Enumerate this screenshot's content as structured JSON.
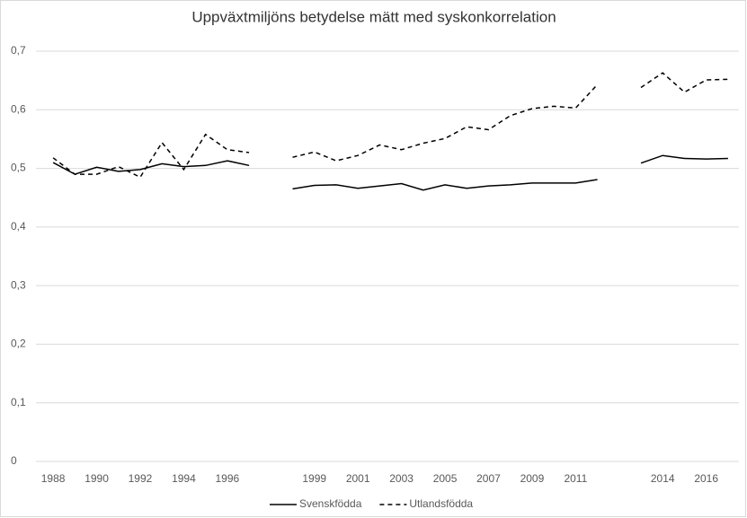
{
  "chart_data": {
    "type": "line",
    "title": "Uppväxtmiljöns betydelse mätt med syskonkorrelation",
    "categories": [
      "1988",
      null,
      "1990",
      null,
      "1992",
      null,
      "1994",
      null,
      "1996",
      null,
      null,
      null,
      "1999",
      null,
      "2001",
      null,
      "2003",
      null,
      "2005",
      null,
      "2007",
      null,
      "2009",
      null,
      "2011",
      null,
      null,
      null,
      "2014",
      null,
      "2016",
      null
    ],
    "series": [
      {
        "name": "Svenskfödda",
        "color": "#000000",
        "style": "solid",
        "values": [
          0.51,
          0.49,
          0.502,
          0.495,
          0.498,
          0.508,
          0.503,
          0.505,
          0.513,
          0.505,
          null,
          0.465,
          0.471,
          0.472,
          0.466,
          0.47,
          0.474,
          0.463,
          0.472,
          0.466,
          0.47,
          0.472,
          0.475,
          0.475,
          0.475,
          0.481,
          null,
          0.509,
          0.522,
          0.517,
          0.516,
          0.517
        ]
      },
      {
        "name": "Utlandsfödda",
        "color": "#000000",
        "style": "dashed",
        "values": [
          0.518,
          0.49,
          0.49,
          0.503,
          0.485,
          0.544,
          0.498,
          0.558,
          0.532,
          0.527,
          null,
          0.519,
          0.528,
          0.513,
          0.522,
          0.54,
          0.532,
          0.543,
          0.551,
          0.571,
          0.566,
          0.59,
          0.602,
          0.606,
          0.603,
          0.643,
          null,
          0.638,
          0.663,
          0.63,
          0.651,
          0.652
        ]
      }
    ],
    "ylim": [
      0,
      0.7
    ],
    "yticks": [
      0,
      {
        "value": 0.1,
        "label": "0,1"
      },
      {
        "value": 0.2,
        "label": "0,2"
      },
      {
        "value": 0.3,
        "label": "0,3"
      },
      {
        "value": 0.4,
        "label": "0,4"
      },
      {
        "value": 0.5,
        "label": "0,5"
      },
      {
        "value": 0.6,
        "label": "0,6"
      },
      {
        "value": 0.7,
        "label": "0,7"
      }
    ],
    "grid": true,
    "legend": "bottom"
  }
}
